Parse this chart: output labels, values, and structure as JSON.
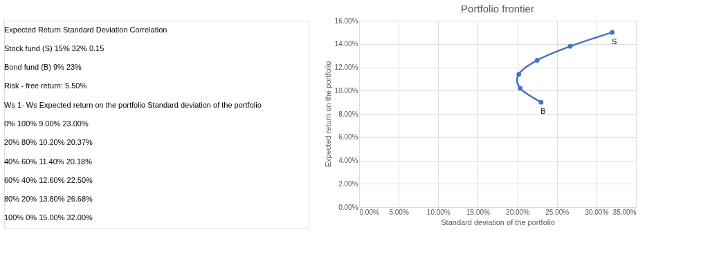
{
  "chart_data": {
    "type": "line",
    "title": "Portfolio frontier",
    "xlabel": "Standard deviation of the portfolio",
    "ylabel": "Expected return on the portfolio",
    "x": [
      0.23,
      0.2037,
      0.2018,
      0.225,
      0.2668,
      0.32
    ],
    "series": [
      {
        "color": "#4472c4",
        "values": [
          0.09,
          0.102,
          0.114,
          0.126,
          0.138,
          0.15
        ]
      }
    ],
    "xlim": [
      0,
      0.35
    ],
    "xticks": [
      {
        "value": 0,
        "label": "0.00%"
      },
      {
        "value": 0.05,
        "label": "5.00%"
      },
      {
        "value": 0.1,
        "label": "10.00%"
      },
      {
        "value": 0.15,
        "label": "15.00%"
      },
      {
        "value": 0.2,
        "label": "20.00%"
      },
      {
        "value": 0.25,
        "label": "25.00%"
      },
      {
        "value": 0.3,
        "label": "30.00%"
      },
      {
        "value": 0.35,
        "label": "35.00%"
      }
    ],
    "ylim": [
      0,
      0.16
    ],
    "yticks": [
      {
        "value": 0,
        "label": "0.00%"
      },
      {
        "value": 0.02,
        "label": "2.00%"
      },
      {
        "value": 0.04,
        "label": "4.00%"
      },
      {
        "value": 0.06,
        "label": "6.00%"
      },
      {
        "value": 0.08,
        "label": "8.00%"
      },
      {
        "value": 0.1,
        "label": "10.00%"
      },
      {
        "value": 0.12,
        "label": "12.00%"
      },
      {
        "value": 0.14,
        "label": "14.00%"
      },
      {
        "value": 0.16,
        "label": "16.00%"
      }
    ],
    "grid": true,
    "marker": "circle",
    "line_style": "solid",
    "annotations": [
      {
        "text": "S",
        "x": 0.32,
        "y": 0.15
      },
      {
        "text": "B",
        "x": 0.23,
        "y": 0.09
      },
      "Expected Return   Standard Deviation   Correlation",
      "Stock fund (S)   15%   32%   0.15",
      "Bond fund (B)   9%   23%",
      "Risk - free return:   5.50%",
      "Ws   1- Ws   Expected return on the portfolio   Standard deviation of the portfolio",
      "0%   100%   9.00%   23.00%",
      "20%   80%   10.20%   20.37%",
      "40%   60%   11.40%   20.18%",
      "60%   40%   12.60%   22.50%",
      "80%   20%   13.80%   26.68%",
      "100%   0%   15.00%   32.00%"
    ]
  }
}
